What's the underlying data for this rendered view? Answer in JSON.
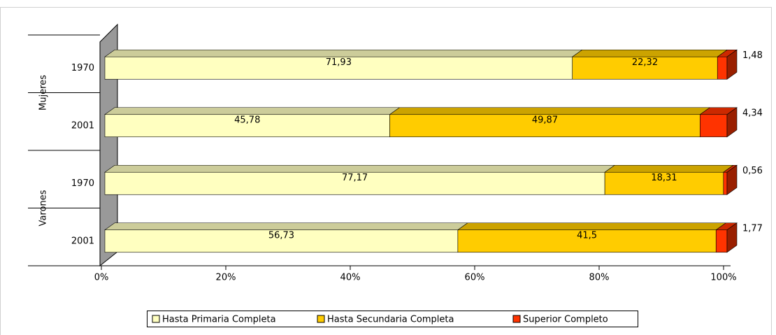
{
  "chart_data": {
    "type": "stacked-bar-3d",
    "orientation": "horizontal",
    "normalize": true,
    "groups": [
      {
        "name": "Mujeres",
        "categories": [
          "1970",
          "2001"
        ]
      },
      {
        "name": "Varones",
        "categories": [
          "1970",
          "2001"
        ]
      }
    ],
    "series": [
      {
        "name": "Hasta Primaria Completa",
        "color": "#ffffc0",
        "values": [
          71.93,
          45.78,
          77.17,
          56.73
        ],
        "value_labels": [
          "71,93",
          "45,78",
          "77,17",
          "56,73"
        ]
      },
      {
        "name": "Hasta Secundaria Completa",
        "color": "#ffcc00",
        "values": [
          22.32,
          49.87,
          18.31,
          41.5
        ],
        "value_labels": [
          "22,32",
          "49,87",
          "18,31",
          "41,5"
        ]
      },
      {
        "name": "Superior Completo",
        "color": "#ff3300",
        "values": [
          1.48,
          4.34,
          0.56,
          1.77
        ],
        "value_labels": [
          "1,48",
          "4,34",
          "0,56",
          "1,77"
        ]
      }
    ],
    "xlim": [
      0,
      100
    ],
    "xticks": [
      {
        "value": 0,
        "label": "0%"
      },
      {
        "value": 20,
        "label": "20%"
      },
      {
        "value": 40,
        "label": "40%"
      },
      {
        "value": 60,
        "label": "60%"
      },
      {
        "value": 80,
        "label": "80%"
      },
      {
        "value": 100,
        "label": "100%"
      }
    ],
    "legend": "bottom"
  }
}
